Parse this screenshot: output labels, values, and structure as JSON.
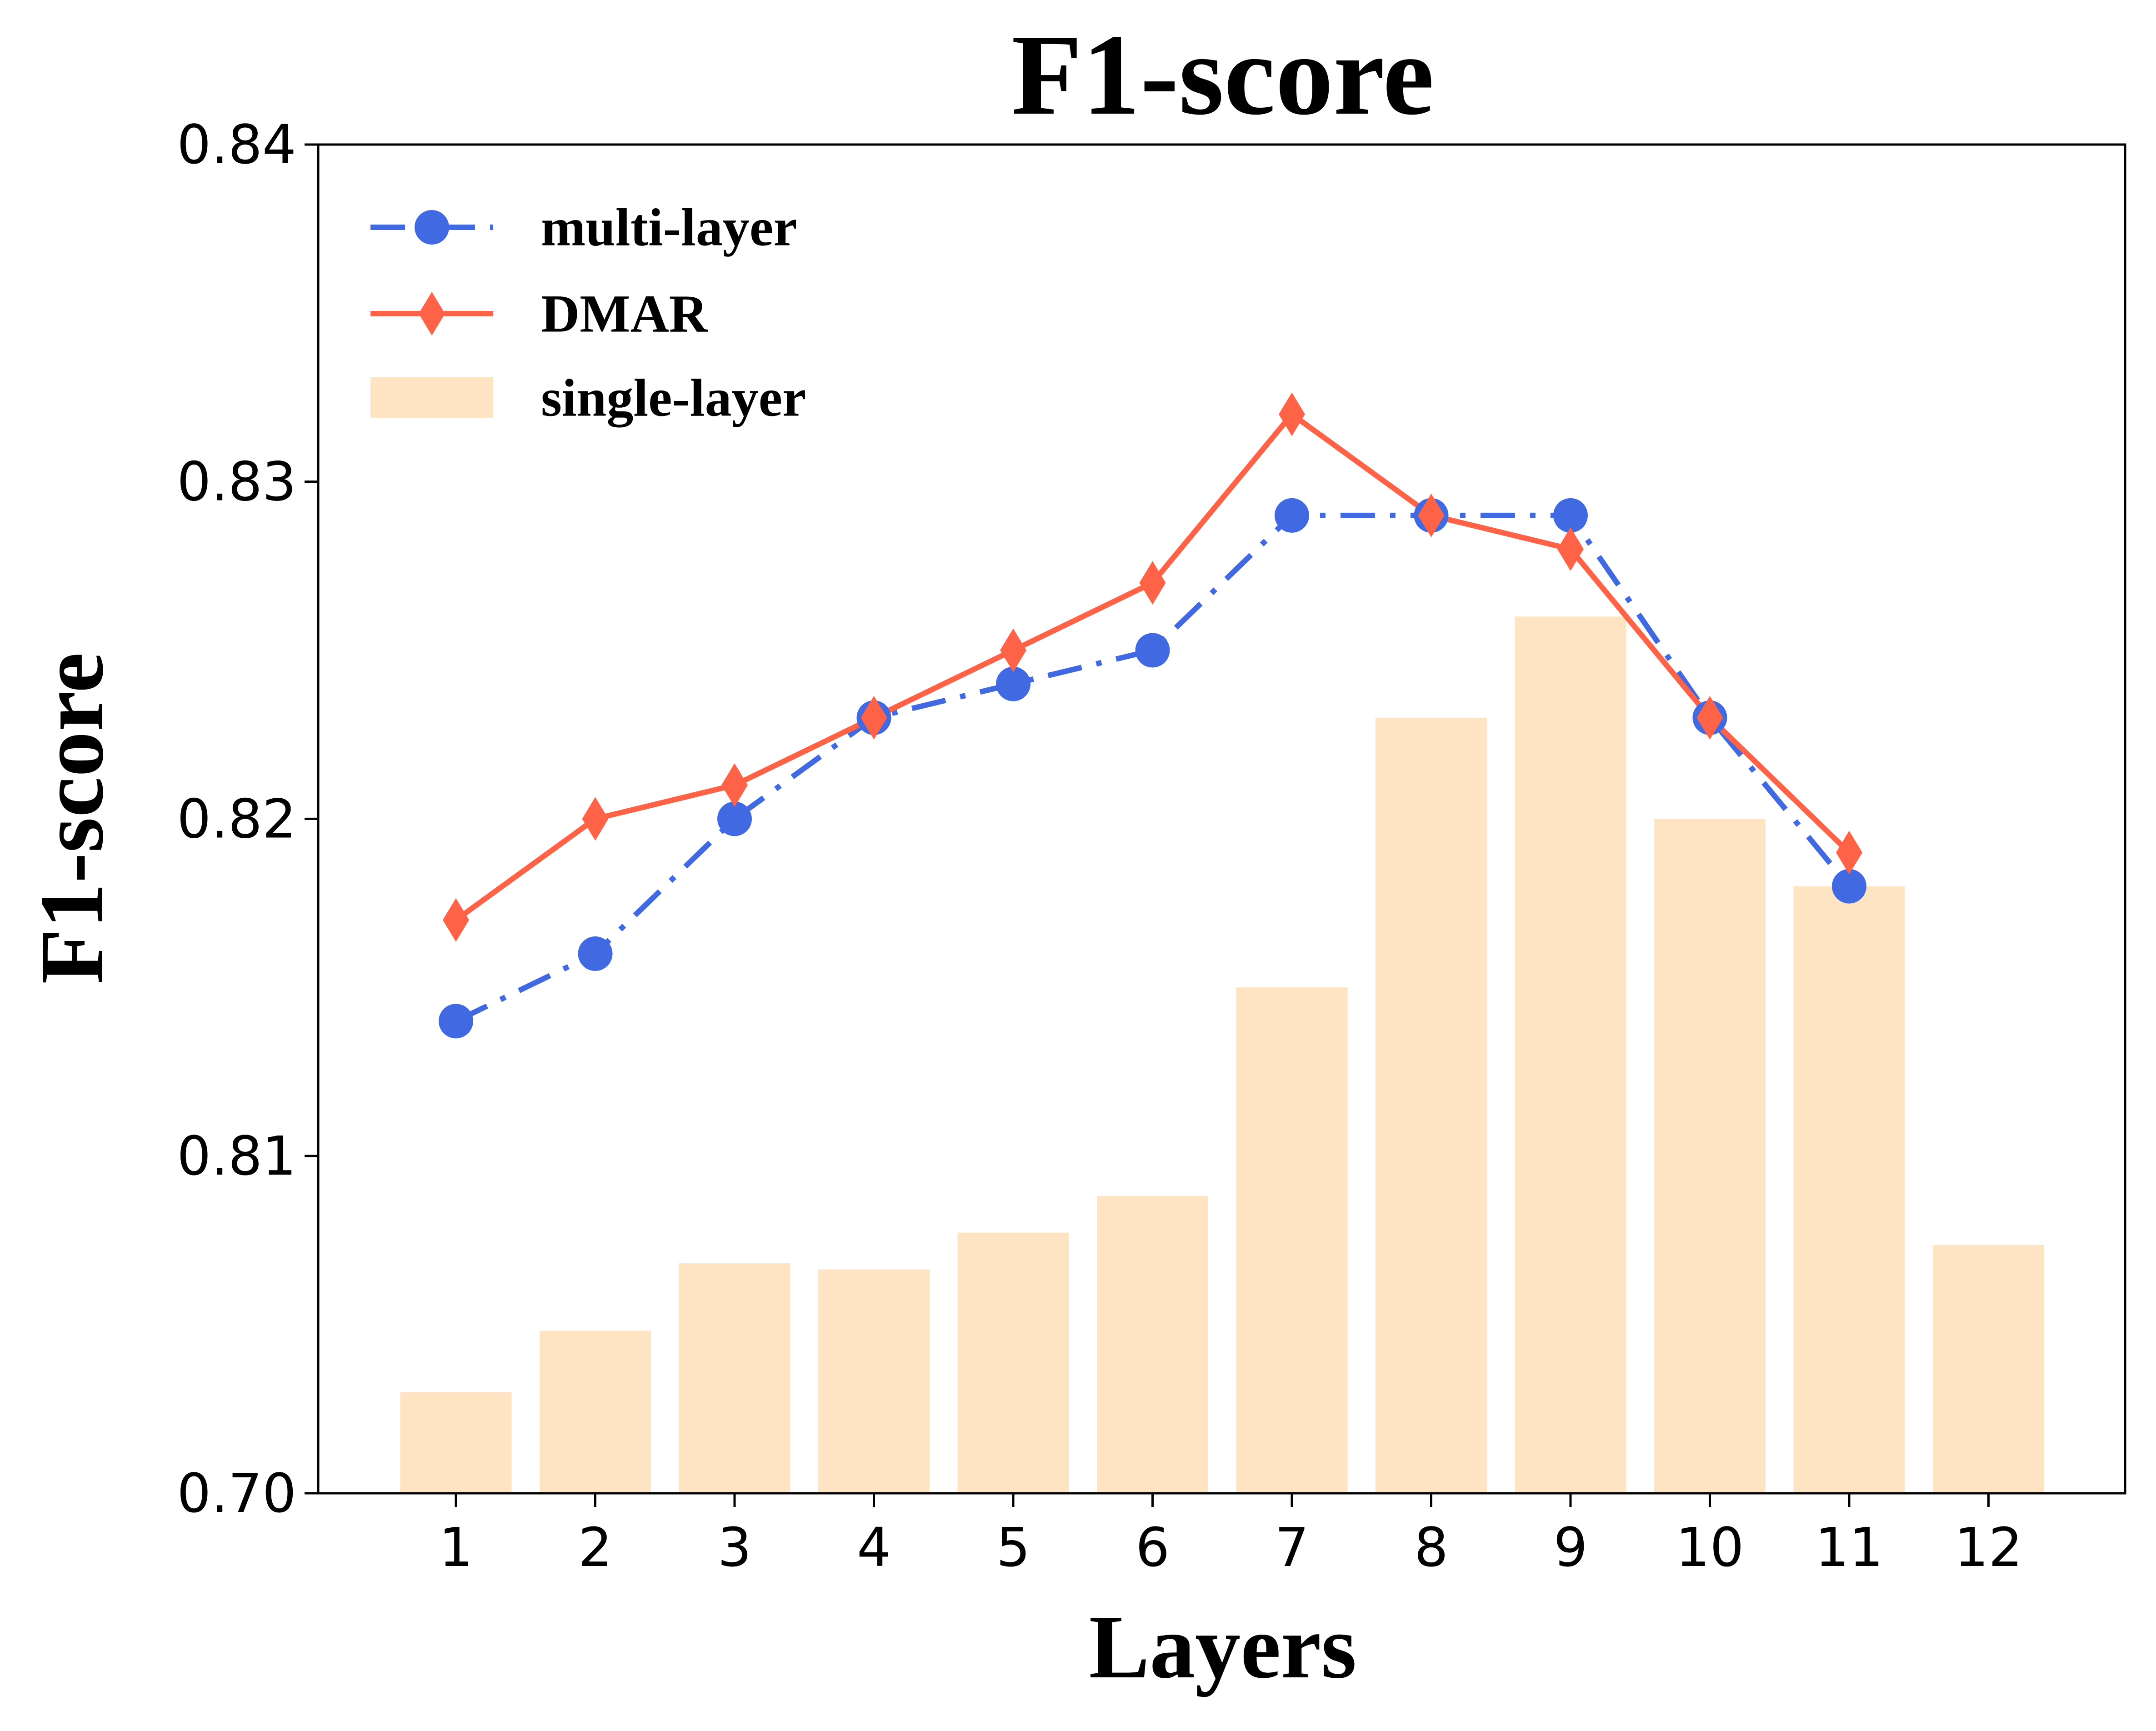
{
  "chart_data": {
    "type": "bar+line",
    "title": "F1-score",
    "xlabel": "Layers",
    "ylabel": "F1-score",
    "x_categories": [
      "1",
      "2",
      "3",
      "4",
      "5",
      "6",
      "7",
      "8",
      "9",
      "10",
      "11",
      "12"
    ],
    "y_ticks": [
      "0.70",
      "0.81",
      "0.82",
      "0.83",
      "0.84"
    ],
    "y_axis_note": "broken scale: bottom segment compresses 0.70 to 0.81",
    "legend_position": "top-left",
    "grid": false,
    "series": [
      {
        "name": "multi-layer",
        "kind": "line",
        "style": "dash-dot with circle markers",
        "color": "#4169E1",
        "x": [
          1,
          2,
          3,
          4,
          5,
          6,
          7,
          8,
          9,
          10,
          11
        ],
        "values": [
          0.814,
          0.816,
          0.82,
          0.823,
          0.824,
          0.825,
          0.829,
          0.829,
          0.829,
          0.823,
          0.818
        ]
      },
      {
        "name": "DMAR",
        "kind": "line",
        "style": "solid with diamond markers",
        "color": "#FF6347",
        "x": [
          1,
          2,
          3,
          4,
          5,
          6,
          7,
          8,
          9,
          10,
          11
        ],
        "values": [
          0.817,
          0.82,
          0.821,
          0.823,
          0.825,
          0.827,
          0.832,
          0.829,
          0.828,
          0.823,
          0.819
        ]
      },
      {
        "name": "single-layer",
        "kind": "bar",
        "color": "#FFE4C4",
        "x": [
          1,
          2,
          3,
          4,
          5,
          6,
          7,
          8,
          9,
          10,
          11,
          12
        ],
        "values": [
          0.733,
          0.753,
          0.775,
          0.773,
          0.785,
          0.797,
          0.815,
          0.823,
          0.826,
          0.82,
          0.818,
          0.781
        ]
      }
    ],
    "legend": [
      "multi-layer",
      "DMAR",
      "single-layer"
    ]
  }
}
